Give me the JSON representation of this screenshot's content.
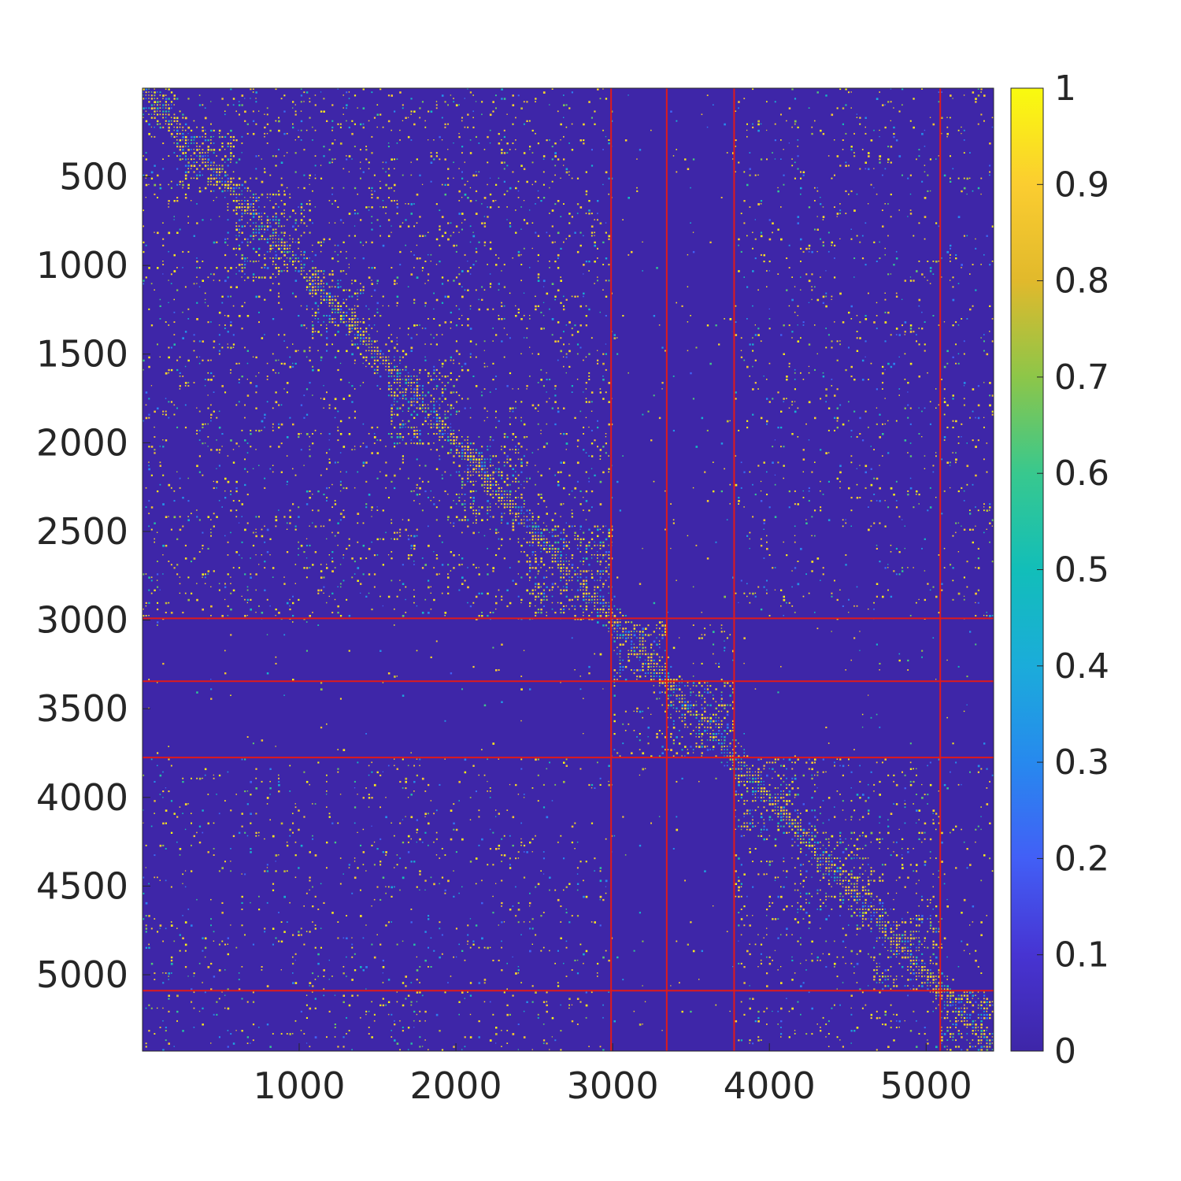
{
  "chart_data": {
    "type": "heatmap",
    "title": "",
    "xlabel": "",
    "ylabel": "",
    "matrix_size": 5430,
    "xlim": [
      1,
      5430
    ],
    "ylim": [
      1,
      5430
    ],
    "y_direction": "top-to-bottom",
    "x_ticks": [
      1000,
      2000,
      3000,
      4000,
      5000
    ],
    "x_tick_labels": [
      "1000",
      "2000",
      "3000",
      "4000",
      "5000"
    ],
    "y_ticks": [
      500,
      1000,
      1500,
      2000,
      2500,
      3000,
      3500,
      4000,
      4500,
      5000
    ],
    "y_tick_labels": [
      "500",
      "1000",
      "1500",
      "2000",
      "2500",
      "3000",
      "3500",
      "4000",
      "4500",
      "5000"
    ],
    "colorbar": {
      "range": [
        0,
        1
      ],
      "colormap": "parula",
      "ticks": [
        0,
        0.1,
        0.2,
        0.3,
        0.4,
        0.5,
        0.6,
        0.7,
        0.8,
        0.9,
        1
      ],
      "tick_labels": [
        "0",
        "0.1",
        "0.2",
        "0.3",
        "0.4",
        "0.5",
        "0.6",
        "0.7",
        "0.8",
        "0.9",
        "1"
      ]
    },
    "block_boundaries": [
      2990,
      3345,
      3775,
      5090
    ],
    "boundary_color": "#e01a1a",
    "background_value": 0.0,
    "diagonal_blocks": [
      {
        "start": 1,
        "end": 230,
        "density": 0.55
      },
      {
        "start": 230,
        "end": 580,
        "density": 0.6
      },
      {
        "start": 580,
        "end": 1070,
        "density": 0.55
      },
      {
        "start": 1070,
        "end": 1400,
        "density": 0.6
      },
      {
        "start": 1400,
        "end": 1580,
        "density": 0.5
      },
      {
        "start": 1580,
        "end": 2000,
        "density": 0.55
      },
      {
        "start": 2000,
        "end": 2450,
        "density": 0.55
      },
      {
        "start": 2450,
        "end": 2990,
        "density": 0.6
      },
      {
        "start": 2990,
        "end": 3345,
        "density": 0.6
      },
      {
        "start": 3345,
        "end": 3775,
        "density": 0.6
      },
      {
        "start": 3775,
        "end": 4180,
        "density": 0.55
      },
      {
        "start": 4180,
        "end": 4650,
        "density": 0.5
      },
      {
        "start": 4650,
        "end": 5090,
        "density": 0.5
      },
      {
        "start": 5090,
        "end": 5430,
        "density": 0.6
      }
    ],
    "colors": {
      "background": "#3e26a8",
      "high": "#f9fb0e",
      "axis": "#262626"
    }
  }
}
